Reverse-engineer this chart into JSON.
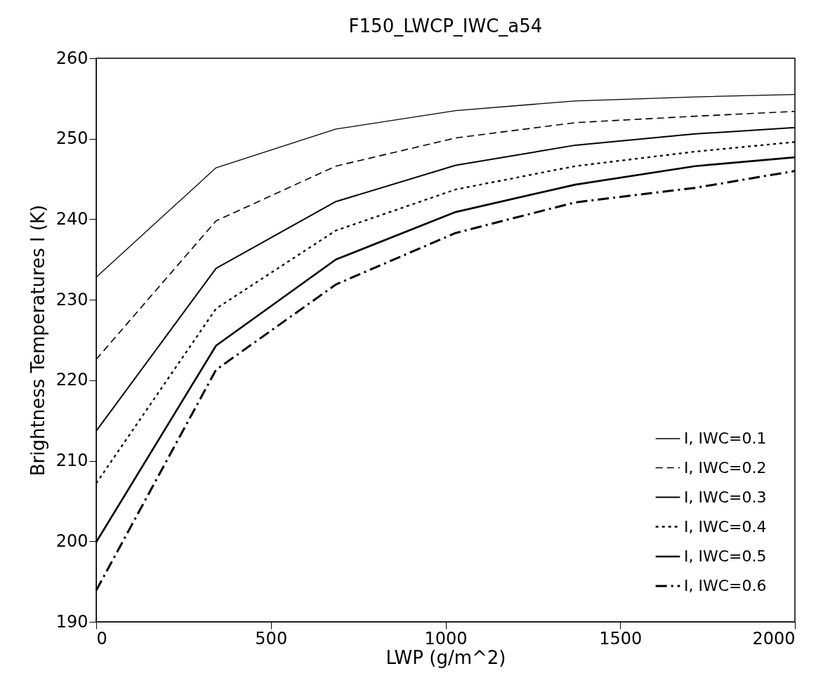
{
  "chart_data": {
    "type": "line",
    "title": "F150_LWCP_IWC_a54",
    "xlabel": "LWP (g/m^2)",
    "ylabel": "Brightness  Temperatures    I  (K)",
    "x": [
      0,
      343,
      686,
      1029,
      1371,
      1714,
      2000
    ],
    "series": [
      {
        "name": "I, IWC=0.1",
        "color": "#000000",
        "line_style": "solid",
        "values": [
          232.8,
          246.4,
          251.2,
          253.5,
          254.7,
          255.2,
          255.5
        ]
      },
      {
        "name": "I, IWC=0.2",
        "color": "#000000",
        "line_style": "dashed",
        "values": [
          222.6,
          239.8,
          246.6,
          250.1,
          252.0,
          252.8,
          253.4
        ]
      },
      {
        "name": "I, IWC=0.3",
        "color": "#000000",
        "line_style": "solid",
        "values": [
          213.7,
          233.9,
          242.2,
          246.7,
          249.2,
          250.6,
          251.4
        ]
      },
      {
        "name": "I, IWC=0.4",
        "color": "#000000",
        "line_style": "dotted",
        "values": [
          207.2,
          228.9,
          238.6,
          243.7,
          246.6,
          248.4,
          249.6
        ]
      },
      {
        "name": "I, IWC=0.5",
        "color": "#000000",
        "line_style": "solid",
        "values": [
          199.9,
          224.3,
          235.0,
          240.9,
          244.3,
          246.6,
          247.7
        ]
      },
      {
        "name": "I, IWC=0.6",
        "color": "#000000",
        "line_style": "dashed",
        "values": [
          193.9,
          221.3,
          231.9,
          238.3,
          242.1,
          243.9,
          246.0
        ]
      }
    ],
    "xlim": [
      0,
      2000
    ],
    "xticks": [
      0,
      500,
      1000,
      1500,
      2000
    ],
    "ylim": [
      190,
      260
    ],
    "yticks": [
      190,
      200,
      210,
      220,
      230,
      240,
      250,
      260
    ],
    "grid": false,
    "legend": "bottom right",
    "marker": "none"
  }
}
